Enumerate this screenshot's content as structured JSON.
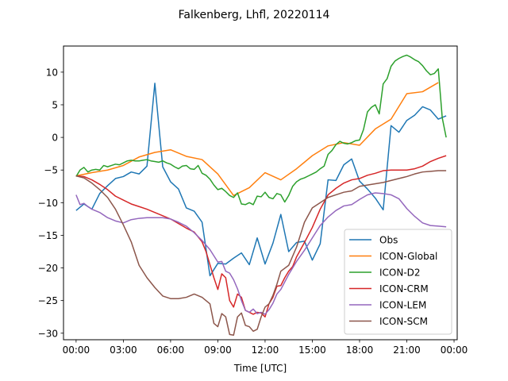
{
  "chart_data": {
    "type": "line",
    "title": "Falkenberg, Lhfl, 20220114",
    "xlabel": "Time [UTC]",
    "ylabel": "",
    "xlim": [
      -0.8,
      24.2
    ],
    "ylim": [
      -31,
      14
    ],
    "x_ticks": [
      0,
      3,
      6,
      9,
      12,
      15,
      18,
      21,
      24
    ],
    "x_tick_labels": [
      "00:00",
      "03:00",
      "06:00",
      "09:00",
      "12:00",
      "15:00",
      "18:00",
      "21:00",
      "00:00"
    ],
    "y_ticks": [
      -30,
      -25,
      -20,
      -15,
      -10,
      -5,
      0,
      5,
      10
    ],
    "y_tick_labels": [
      "−30",
      "−25",
      "−20",
      "−15",
      "−10",
      "−5",
      "0",
      "5",
      "10"
    ],
    "grid": false,
    "legend_position": "lower-right",
    "series": [
      {
        "name": "Obs",
        "color": "#1f77b4",
        "x": [
          0,
          0.5,
          1,
          1.5,
          2,
          2.5,
          3,
          3.5,
          4,
          4.5,
          5,
          5.5,
          6,
          6.5,
          7,
          7.5,
          8,
          8.5,
          9,
          9.5,
          10,
          10.5,
          11,
          11.5,
          12,
          12.5,
          13,
          13.5,
          14,
          14.5,
          15,
          15.5,
          16,
          16.5,
          17,
          17.5,
          18,
          18.5,
          19,
          19.5,
          20,
          20.5,
          21,
          21.5,
          22,
          22.5,
          23,
          23.5
        ],
        "y": [
          -11.2,
          -10.2,
          -11.0,
          -8.6,
          -7.4,
          -6.3,
          -6.0,
          -5.3,
          -5.6,
          -4.4,
          8.3,
          -4.5,
          -6.8,
          -7.9,
          -10.8,
          -11.3,
          -13.0,
          -21.2,
          -19.3,
          -19.4,
          -18.5,
          -17.7,
          -19.5,
          -15.4,
          -19.4,
          -16.2,
          -11.8,
          -17.5,
          -16.1,
          -15.9,
          -18.8,
          -16.3,
          -6.5,
          -6.6,
          -4.2,
          -3.3,
          -6.7,
          -7.9,
          -9.3,
          -11.1,
          1.8,
          0.8,
          2.6,
          3.4,
          4.7,
          4.2,
          2.8,
          3.3
        ]
      },
      {
        "name": "ICON-Global",
        "color": "#ff7f0e",
        "x": [
          0,
          1,
          2,
          3,
          4,
          5,
          6,
          7,
          8,
          9,
          10,
          11,
          12,
          13,
          14,
          15,
          16,
          17,
          18,
          19,
          20,
          21,
          22,
          23
        ],
        "y": [
          -5.9,
          -5.4,
          -5.0,
          -4.3,
          -3.0,
          -2.3,
          -1.9,
          -2.9,
          -3.4,
          -5.6,
          -8.9,
          -7.7,
          -5.4,
          -6.5,
          -4.8,
          -2.8,
          -1.3,
          -0.8,
          -1.2,
          1.3,
          2.8,
          6.7,
          7.0,
          8.4
        ]
      },
      {
        "name": "ICON-D2",
        "color": "#2ca02c",
        "x": [
          0,
          0.25,
          0.5,
          0.75,
          1,
          1.25,
          1.5,
          1.75,
          2,
          2.25,
          2.5,
          2.75,
          3,
          3.25,
          3.5,
          3.75,
          4,
          4.25,
          4.5,
          4.75,
          5,
          5.25,
          5.5,
          5.75,
          6,
          6.25,
          6.5,
          6.75,
          7,
          7.25,
          7.5,
          7.75,
          8,
          8.25,
          8.5,
          8.75,
          9,
          9.25,
          9.5,
          9.75,
          10,
          10.25,
          10.5,
          10.75,
          11,
          11.25,
          11.5,
          11.75,
          12,
          12.25,
          12.5,
          12.75,
          13,
          13.25,
          13.5,
          13.75,
          14,
          14.25,
          14.5,
          14.75,
          15,
          15.25,
          15.5,
          15.75,
          16,
          16.25,
          16.5,
          16.75,
          17,
          17.25,
          17.5,
          17.75,
          18,
          18.25,
          18.5,
          18.75,
          19,
          19.25,
          19.5,
          19.75,
          20,
          20.25,
          20.5,
          20.75,
          21,
          21.25,
          21.5,
          21.75,
          22,
          22.25,
          22.5,
          22.75,
          23,
          23.25,
          23.5
        ],
        "y": [
          -6.0,
          -5.0,
          -4.6,
          -5.3,
          -5.0,
          -4.9,
          -5.0,
          -4.3,
          -4.5,
          -4.3,
          -4.1,
          -4.2,
          -3.9,
          -3.6,
          -3.5,
          -3.6,
          -3.6,
          -3.5,
          -3.4,
          -3.6,
          -3.7,
          -3.8,
          -3.6,
          -3.9,
          -4.1,
          -4.5,
          -4.8,
          -4.4,
          -4.3,
          -4.8,
          -4.9,
          -4.3,
          -5.5,
          -5.8,
          -6.4,
          -7.3,
          -8.0,
          -7.8,
          -8.3,
          -8.9,
          -9.2,
          -8.5,
          -10.2,
          -10.3,
          -10.0,
          -10.3,
          -9.0,
          -9.1,
          -8.4,
          -9.2,
          -9.4,
          -8.6,
          -8.8,
          -9.9,
          -8.9,
          -7.5,
          -6.8,
          -6.4,
          -6.2,
          -5.9,
          -5.6,
          -5.3,
          -4.8,
          -4.4,
          -2.6,
          -2.0,
          -1.1,
          -0.6,
          -0.9,
          -1.0,
          -0.8,
          -0.5,
          -0.4,
          1.2,
          3.9,
          4.6,
          5.0,
          3.6,
          8.2,
          9.0,
          10.9,
          11.7,
          12.1,
          12.4,
          12.6,
          12.3,
          11.9,
          11.6,
          11.0,
          10.2,
          9.6,
          9.8,
          10.5,
          3.0,
          0.0
        ]
      },
      {
        "name": "ICON-CRM",
        "color": "#d62728",
        "x": [
          0,
          0.5,
          1,
          1.5,
          2,
          2.5,
          3,
          3.5,
          4,
          4.5,
          5,
          5.5,
          6,
          6.5,
          7,
          7.5,
          8,
          8.25,
          8.5,
          8.75,
          9,
          9.25,
          9.5,
          9.75,
          10,
          10.25,
          10.5,
          10.75,
          11,
          11.25,
          11.5,
          11.75,
          12,
          12.25,
          12.5,
          12.75,
          13,
          13.25,
          13.5,
          13.75,
          14,
          14.5,
          15,
          15.5,
          16,
          16.5,
          17,
          17.5,
          18,
          18.5,
          19,
          19.5,
          20,
          20.5,
          21,
          21.5,
          22,
          22.5,
          23,
          23.5
        ],
        "y": [
          -5.9,
          -6.0,
          -6.5,
          -7.2,
          -8.0,
          -9.0,
          -9.6,
          -10.2,
          -10.6,
          -11.0,
          -11.5,
          -12.0,
          -12.5,
          -13.2,
          -13.9,
          -14.5,
          -16.0,
          -17.5,
          -19.5,
          -21.5,
          -23.3,
          -20.9,
          -21.5,
          -25.0,
          -26.0,
          -24.0,
          -24.5,
          -26.5,
          -26.8,
          -27.1,
          -26.8,
          -26.9,
          -27.5,
          -25.5,
          -24.5,
          -22.8,
          -22.7,
          -21.5,
          -20.5,
          -19.8,
          -18.3,
          -16.1,
          -13.8,
          -11.0,
          -8.8,
          -7.8,
          -7.0,
          -6.5,
          -6.3,
          -5.8,
          -5.5,
          -5.1,
          -5.0,
          -5.0,
          -5.0,
          -4.8,
          -4.4,
          -3.7,
          -3.2,
          -2.8
        ]
      },
      {
        "name": "ICON-LEM",
        "color": "#9467bd",
        "x": [
          0,
          0.25,
          0.5,
          0.75,
          1,
          1.5,
          2,
          2.5,
          3,
          3.5,
          4,
          4.5,
          5,
          5.5,
          6,
          6.5,
          7,
          7.5,
          8,
          8.5,
          9,
          9.25,
          9.5,
          9.75,
          10,
          10.25,
          10.5,
          10.75,
          11,
          11.25,
          11.5,
          11.75,
          12,
          12.25,
          12.5,
          12.75,
          13,
          13.5,
          14,
          14.5,
          15,
          15.5,
          16,
          16.5,
          17,
          17.5,
          18,
          18.5,
          19,
          19.5,
          20,
          20.5,
          21,
          21.5,
          22,
          22.5,
          23,
          23.5
        ],
        "y": [
          -8.8,
          -10.3,
          -10.1,
          -10.6,
          -11.0,
          -11.5,
          -12.3,
          -12.8,
          -13.1,
          -12.6,
          -12.4,
          -12.3,
          -12.3,
          -12.3,
          -12.5,
          -13.0,
          -13.6,
          -14.6,
          -15.8,
          -17.2,
          -19.1,
          -19.0,
          -20.5,
          -20.8,
          -21.8,
          -23.2,
          -25.0,
          -26.5,
          -26.8,
          -26.3,
          -27.0,
          -26.8,
          -27.1,
          -26.4,
          -25.4,
          -24.0,
          -23.3,
          -21.0,
          -19.0,
          -17.3,
          -15.4,
          -13.5,
          -12.2,
          -11.2,
          -10.5,
          -10.3,
          -9.5,
          -8.8,
          -8.5,
          -8.6,
          -8.8,
          -9.4,
          -10.9,
          -12.1,
          -13.1,
          -13.5,
          -13.6,
          -13.7
        ]
      },
      {
        "name": "ICON-SCM",
        "color": "#8c564b",
        "x": [
          0,
          0.5,
          1,
          1.5,
          2,
          2.5,
          3,
          3.5,
          4,
          4.5,
          5,
          5.5,
          6,
          6.5,
          7,
          7.5,
          8,
          8.25,
          8.5,
          8.75,
          9,
          9.25,
          9.5,
          9.75,
          10,
          10.25,
          10.5,
          10.75,
          11,
          11.25,
          11.5,
          11.75,
          12,
          12.25,
          12.5,
          12.75,
          13,
          13.5,
          14,
          14.5,
          15,
          15.5,
          16,
          16.5,
          17,
          17.5,
          18,
          18.5,
          19,
          19.5,
          20,
          20.5,
          21,
          21.5,
          22,
          22.5,
          23,
          23.5
        ],
        "y": [
          -5.9,
          -6.2,
          -7.0,
          -8.0,
          -9.2,
          -11.0,
          -13.4,
          -16.0,
          -19.6,
          -21.5,
          -23.0,
          -24.3,
          -24.7,
          -24.7,
          -24.5,
          -24.0,
          -24.5,
          -25.0,
          -25.5,
          -28.5,
          -29.0,
          -27.0,
          -27.5,
          -30.2,
          -30.3,
          -27.5,
          -26.9,
          -28.8,
          -29.0,
          -29.7,
          -29.4,
          -27.5,
          -26.0,
          -25.5,
          -24.2,
          -22.5,
          -20.5,
          -19.6,
          -16.8,
          -13.0,
          -10.8,
          -10.0,
          -9.2,
          -8.8,
          -8.4,
          -8.2,
          -7.5,
          -7.3,
          -7.1,
          -6.9,
          -6.6,
          -6.3,
          -6.0,
          -5.6,
          -5.3,
          -5.2,
          -5.1,
          -5.1
        ]
      }
    ]
  }
}
